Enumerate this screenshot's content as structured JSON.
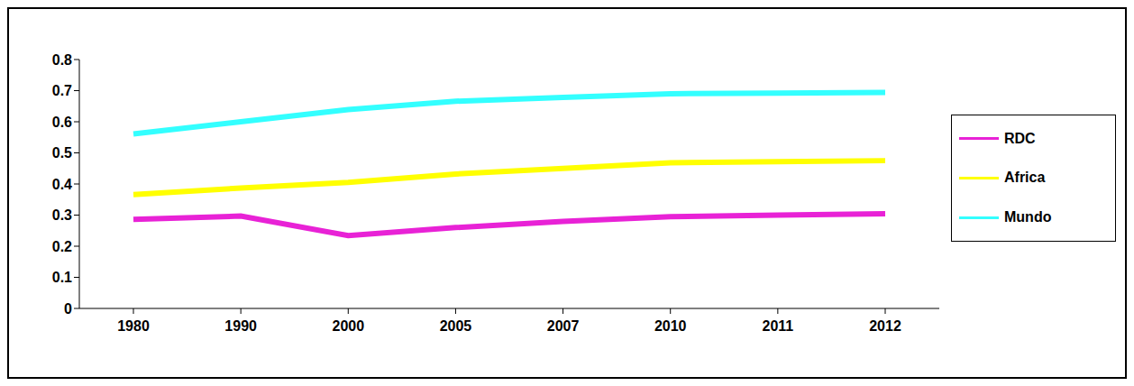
{
  "chart_data": {
    "type": "line",
    "categories": [
      "1980",
      "1990",
      "2000",
      "2005",
      "2007",
      "2010",
      "2011",
      "2012"
    ],
    "series": [
      {
        "name": "RDC",
        "color": "#e822d6",
        "values": [
          0.286,
          0.297,
          0.234,
          0.26,
          0.28,
          0.295,
          0.3,
          0.304
        ]
      },
      {
        "name": "Africa",
        "color": "#ffff00",
        "values": [
          0.366,
          0.387,
          0.405,
          0.432,
          0.45,
          0.468,
          0.472,
          0.475
        ]
      },
      {
        "name": "Mundo",
        "color": "#33ffff",
        "values": [
          0.561,
          0.6,
          0.639,
          0.666,
          0.678,
          0.69,
          0.692,
          0.694
        ]
      }
    ],
    "ylim": [
      0,
      0.8
    ],
    "yticks": [
      0,
      0.1,
      0.2,
      0.3,
      0.4,
      0.5,
      0.6,
      0.7,
      0.8
    ],
    "grid": false,
    "legend": "right"
  }
}
